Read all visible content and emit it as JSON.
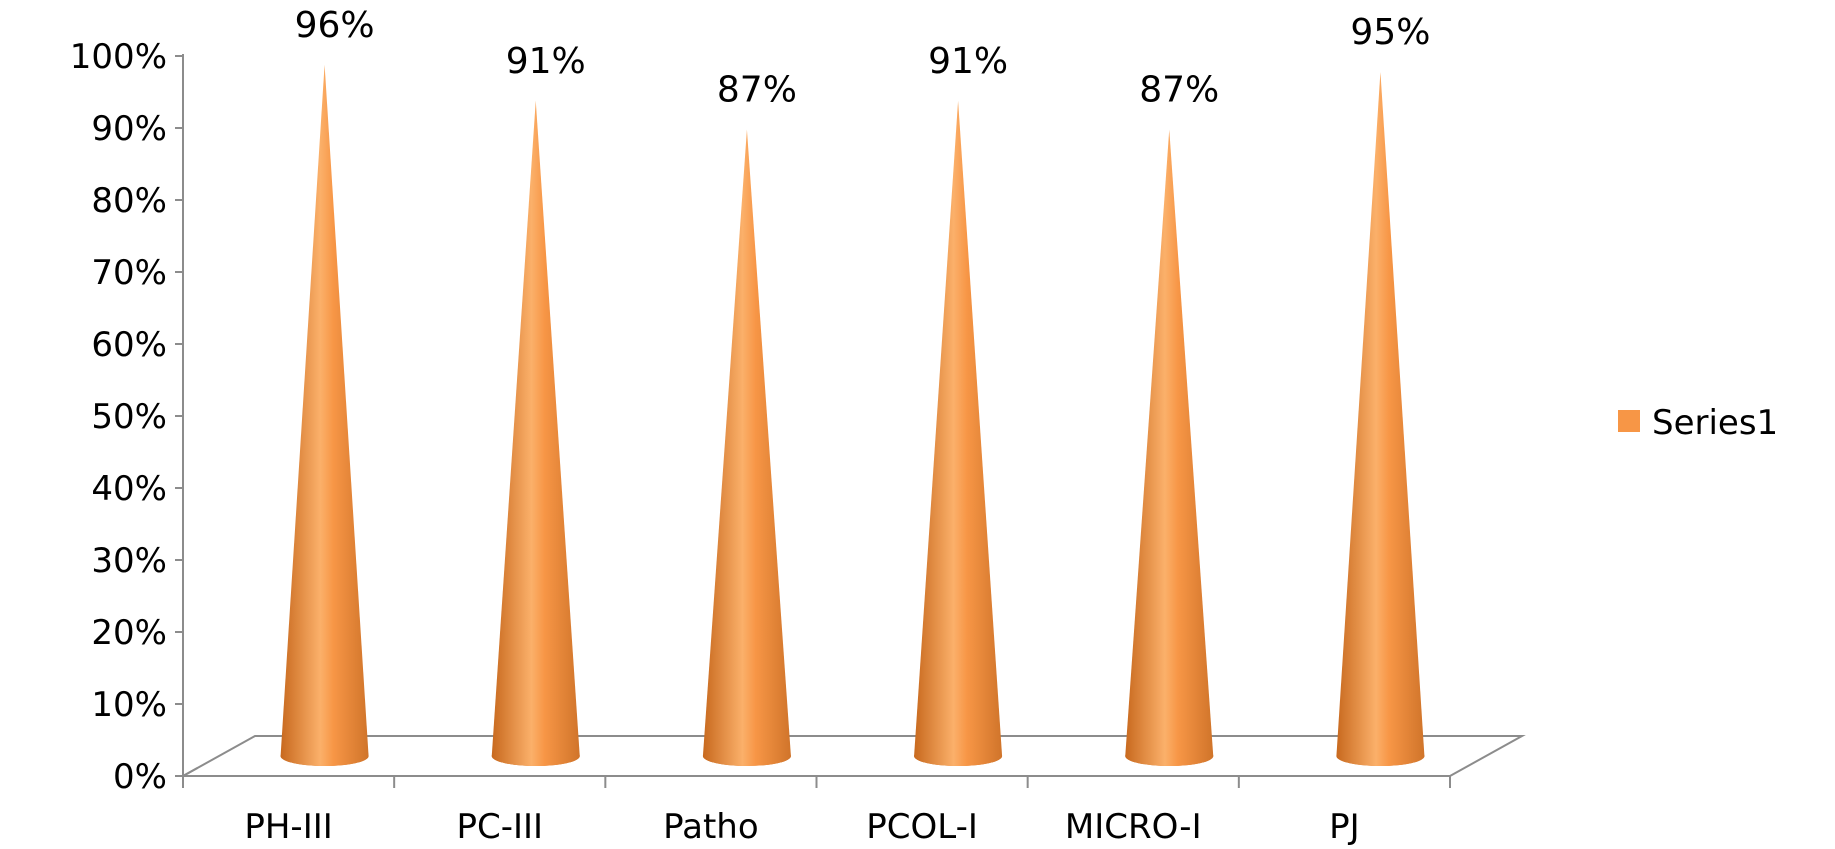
{
  "chart_data": {
    "type": "bar",
    "bar_shape": "cone",
    "categories": [
      "PH-III",
      "PC-III",
      "Patho",
      "PCOL-I",
      "MICRO-I",
      "PJ"
    ],
    "series": [
      {
        "name": "Series1",
        "values": [
          96,
          91,
          87,
          91,
          87,
          95
        ]
      }
    ],
    "data_labels": [
      "96%",
      "91%",
      "87%",
      "91%",
      "87%",
      "95%"
    ],
    "y_ticks": [
      "0%",
      "10%",
      "20%",
      "30%",
      "40%",
      "50%",
      "60%",
      "70%",
      "80%",
      "90%",
      "100%"
    ],
    "ylim": [
      0,
      100
    ],
    "title": "",
    "xlabel": "",
    "ylabel": "",
    "grid": false,
    "legend_position": "right",
    "colors": {
      "series": "#f79646",
      "series_dark": "#c8691e",
      "series_light": "#fbc08a",
      "axis": "#8c8c8c"
    }
  }
}
